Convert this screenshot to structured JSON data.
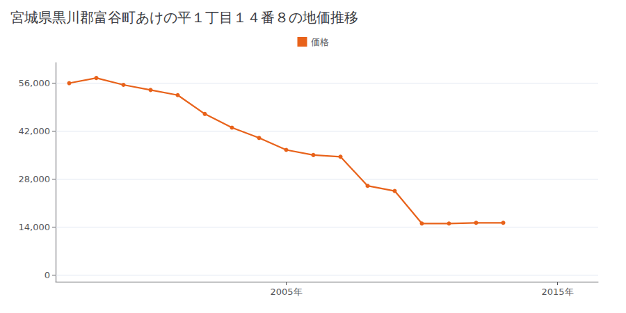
{
  "chart_data": {
    "type": "line",
    "title": "宮城県黒川郡富谷町あけの平１丁目１４番８の地価推移",
    "x": [
      1997,
      1998,
      1999,
      2000,
      2001,
      2002,
      2003,
      2004,
      2005,
      2006,
      2007,
      2008,
      2009,
      2010,
      2011,
      2012,
      2013
    ],
    "series": [
      {
        "name": "価格",
        "color": "#e8621a",
        "marker": "circle",
        "values": [
          56000,
          57500,
          55500,
          54000,
          52500,
          47000,
          43000,
          40000,
          36500,
          35000,
          34500,
          26000,
          24500,
          15000,
          15000,
          15200,
          15200
        ]
      }
    ],
    "xlim": [
      1996.5,
      2016.5
    ],
    "xticks": [
      {
        "value": 2005,
        "label": "2005年"
      },
      {
        "value": 2015,
        "label": "2015年"
      }
    ],
    "ylim": [
      -2000,
      62000
    ],
    "yticks": [
      0,
      {
        "value": 14000,
        "label": "14,000"
      },
      {
        "value": 28000,
        "label": "28,000"
      },
      {
        "value": 42000,
        "label": "42,000"
      },
      {
        "value": 56000,
        "label": "56,000"
      }
    ],
    "grid": "y",
    "legend": "top"
  }
}
